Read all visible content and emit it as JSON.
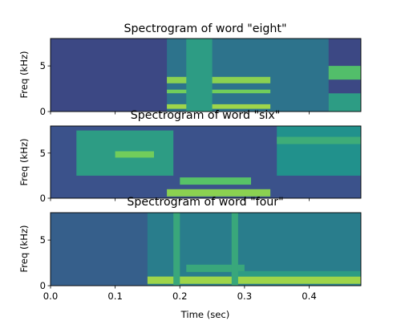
{
  "chart_data": [
    {
      "type": "heatmap",
      "title": "Spectrogram of word \"eight\"",
      "ylabel": "Freq (kHz)",
      "xlim": [
        0.0,
        0.48
      ],
      "ylim": [
        0,
        8
      ],
      "yticks": [
        0,
        5
      ],
      "show_xtick_labels": false,
      "colormap": "viridis",
      "regions": [
        {
          "t0": 0.0,
          "t1": 0.48,
          "f0": 0,
          "f1": 8,
          "level": 0.22
        },
        {
          "t0": 0.18,
          "t1": 0.43,
          "f0": 0,
          "f1": 8,
          "level": 0.38
        },
        {
          "t0": 0.18,
          "t1": 0.34,
          "f0": 0.3,
          "f1": 0.8,
          "level": 0.85
        },
        {
          "t0": 0.18,
          "t1": 0.34,
          "f0": 2.0,
          "f1": 2.4,
          "level": 0.78
        },
        {
          "t0": 0.18,
          "t1": 0.34,
          "f0": 3.1,
          "f1": 3.8,
          "level": 0.82
        },
        {
          "t0": 0.21,
          "t1": 0.25,
          "f0": 0,
          "f1": 8,
          "level": 0.55
        },
        {
          "t0": 0.43,
          "t1": 0.48,
          "f0": 3.5,
          "f1": 5.0,
          "level": 0.7
        },
        {
          "t0": 0.43,
          "t1": 0.48,
          "f0": 0,
          "f1": 2.0,
          "level": 0.55
        }
      ]
    },
    {
      "type": "heatmap",
      "title": "Spectrogram of word \"six\"",
      "ylabel": "Freq (kHz)",
      "xlim": [
        0.0,
        0.48
      ],
      "ylim": [
        0,
        8
      ],
      "yticks": [
        0,
        5
      ],
      "show_xtick_labels": false,
      "colormap": "viridis",
      "regions": [
        {
          "t0": 0.0,
          "t1": 0.48,
          "f0": 0,
          "f1": 8,
          "level": 0.25
        },
        {
          "t0": 0.04,
          "t1": 0.19,
          "f0": 2.5,
          "f1": 7.5,
          "level": 0.55
        },
        {
          "t0": 0.1,
          "t1": 0.16,
          "f0": 4.5,
          "f1": 5.2,
          "level": 0.78
        },
        {
          "t0": 0.18,
          "t1": 0.34,
          "f0": 0.2,
          "f1": 1.0,
          "level": 0.82
        },
        {
          "t0": 0.2,
          "t1": 0.31,
          "f0": 1.5,
          "f1": 2.3,
          "level": 0.72
        },
        {
          "t0": 0.35,
          "t1": 0.48,
          "f0": 2.5,
          "f1": 8,
          "level": 0.5
        },
        {
          "t0": 0.35,
          "t1": 0.48,
          "f0": 6.0,
          "f1": 6.8,
          "level": 0.62
        }
      ]
    },
    {
      "type": "heatmap",
      "title": "Spectrogram of word \"four\"",
      "ylabel": "Freq (kHz)",
      "xlabel": "Time (sec)",
      "xlim": [
        0.0,
        0.48
      ],
      "ylim": [
        0,
        8
      ],
      "xticks": [
        "0.0",
        "0.1",
        "0.2",
        "0.3",
        "0.4"
      ],
      "yticks": [
        0,
        5
      ],
      "show_xtick_labels": true,
      "colormap": "viridis",
      "regions": [
        {
          "t0": 0.0,
          "t1": 0.48,
          "f0": 0,
          "f1": 8,
          "level": 0.3
        },
        {
          "t0": 0.15,
          "t1": 0.48,
          "f0": 0,
          "f1": 8,
          "level": 0.42
        },
        {
          "t0": 0.15,
          "t1": 0.48,
          "f0": 0.2,
          "f1": 1.0,
          "level": 0.85
        },
        {
          "t0": 0.21,
          "t1": 0.3,
          "f0": 1.5,
          "f1": 2.3,
          "level": 0.6
        },
        {
          "t0": 0.28,
          "t1": 0.48,
          "f0": 1.0,
          "f1": 1.6,
          "level": 0.55
        },
        {
          "t0": 0.19,
          "t1": 0.2,
          "f0": 0,
          "f1": 8,
          "level": 0.6
        },
        {
          "t0": 0.28,
          "t1": 0.29,
          "f0": 0,
          "f1": 8,
          "level": 0.6
        }
      ]
    }
  ]
}
